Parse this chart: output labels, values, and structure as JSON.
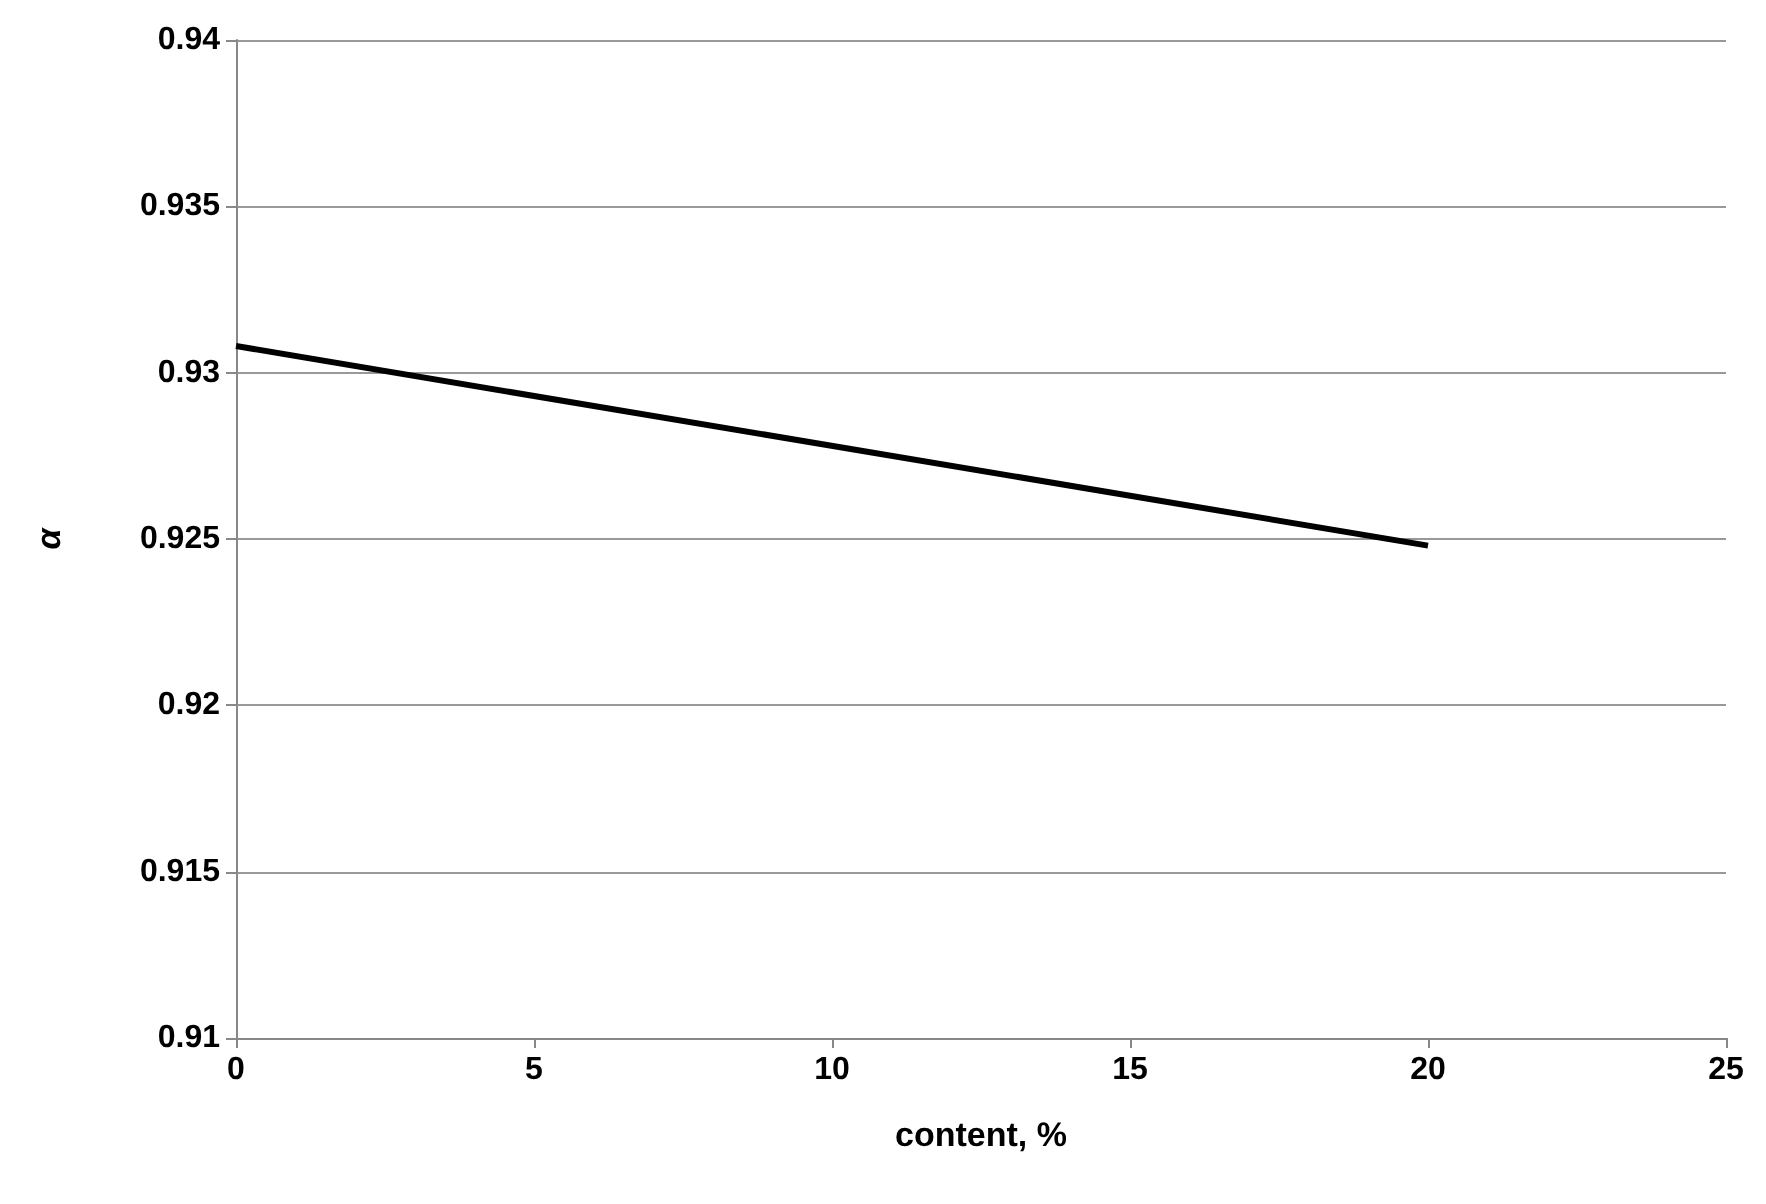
{
  "chart_data": {
    "type": "line",
    "xlabel": "content, %",
    "ylabel": "α",
    "x": [
      0,
      20
    ],
    "series": [
      {
        "color": "#000000",
        "values": [
          0.9308,
          0.9248
        ]
      }
    ],
    "xlim": [
      0,
      25
    ],
    "xticks": [
      0,
      5,
      10,
      15,
      20,
      25
    ],
    "ylim": [
      0.91,
      0.94
    ],
    "yticks": [
      0.91,
      0.915,
      0.92,
      0.925,
      0.93,
      0.935,
      0.94
    ],
    "grid": "y",
    "marker": "none",
    "line_style": "solid"
  }
}
